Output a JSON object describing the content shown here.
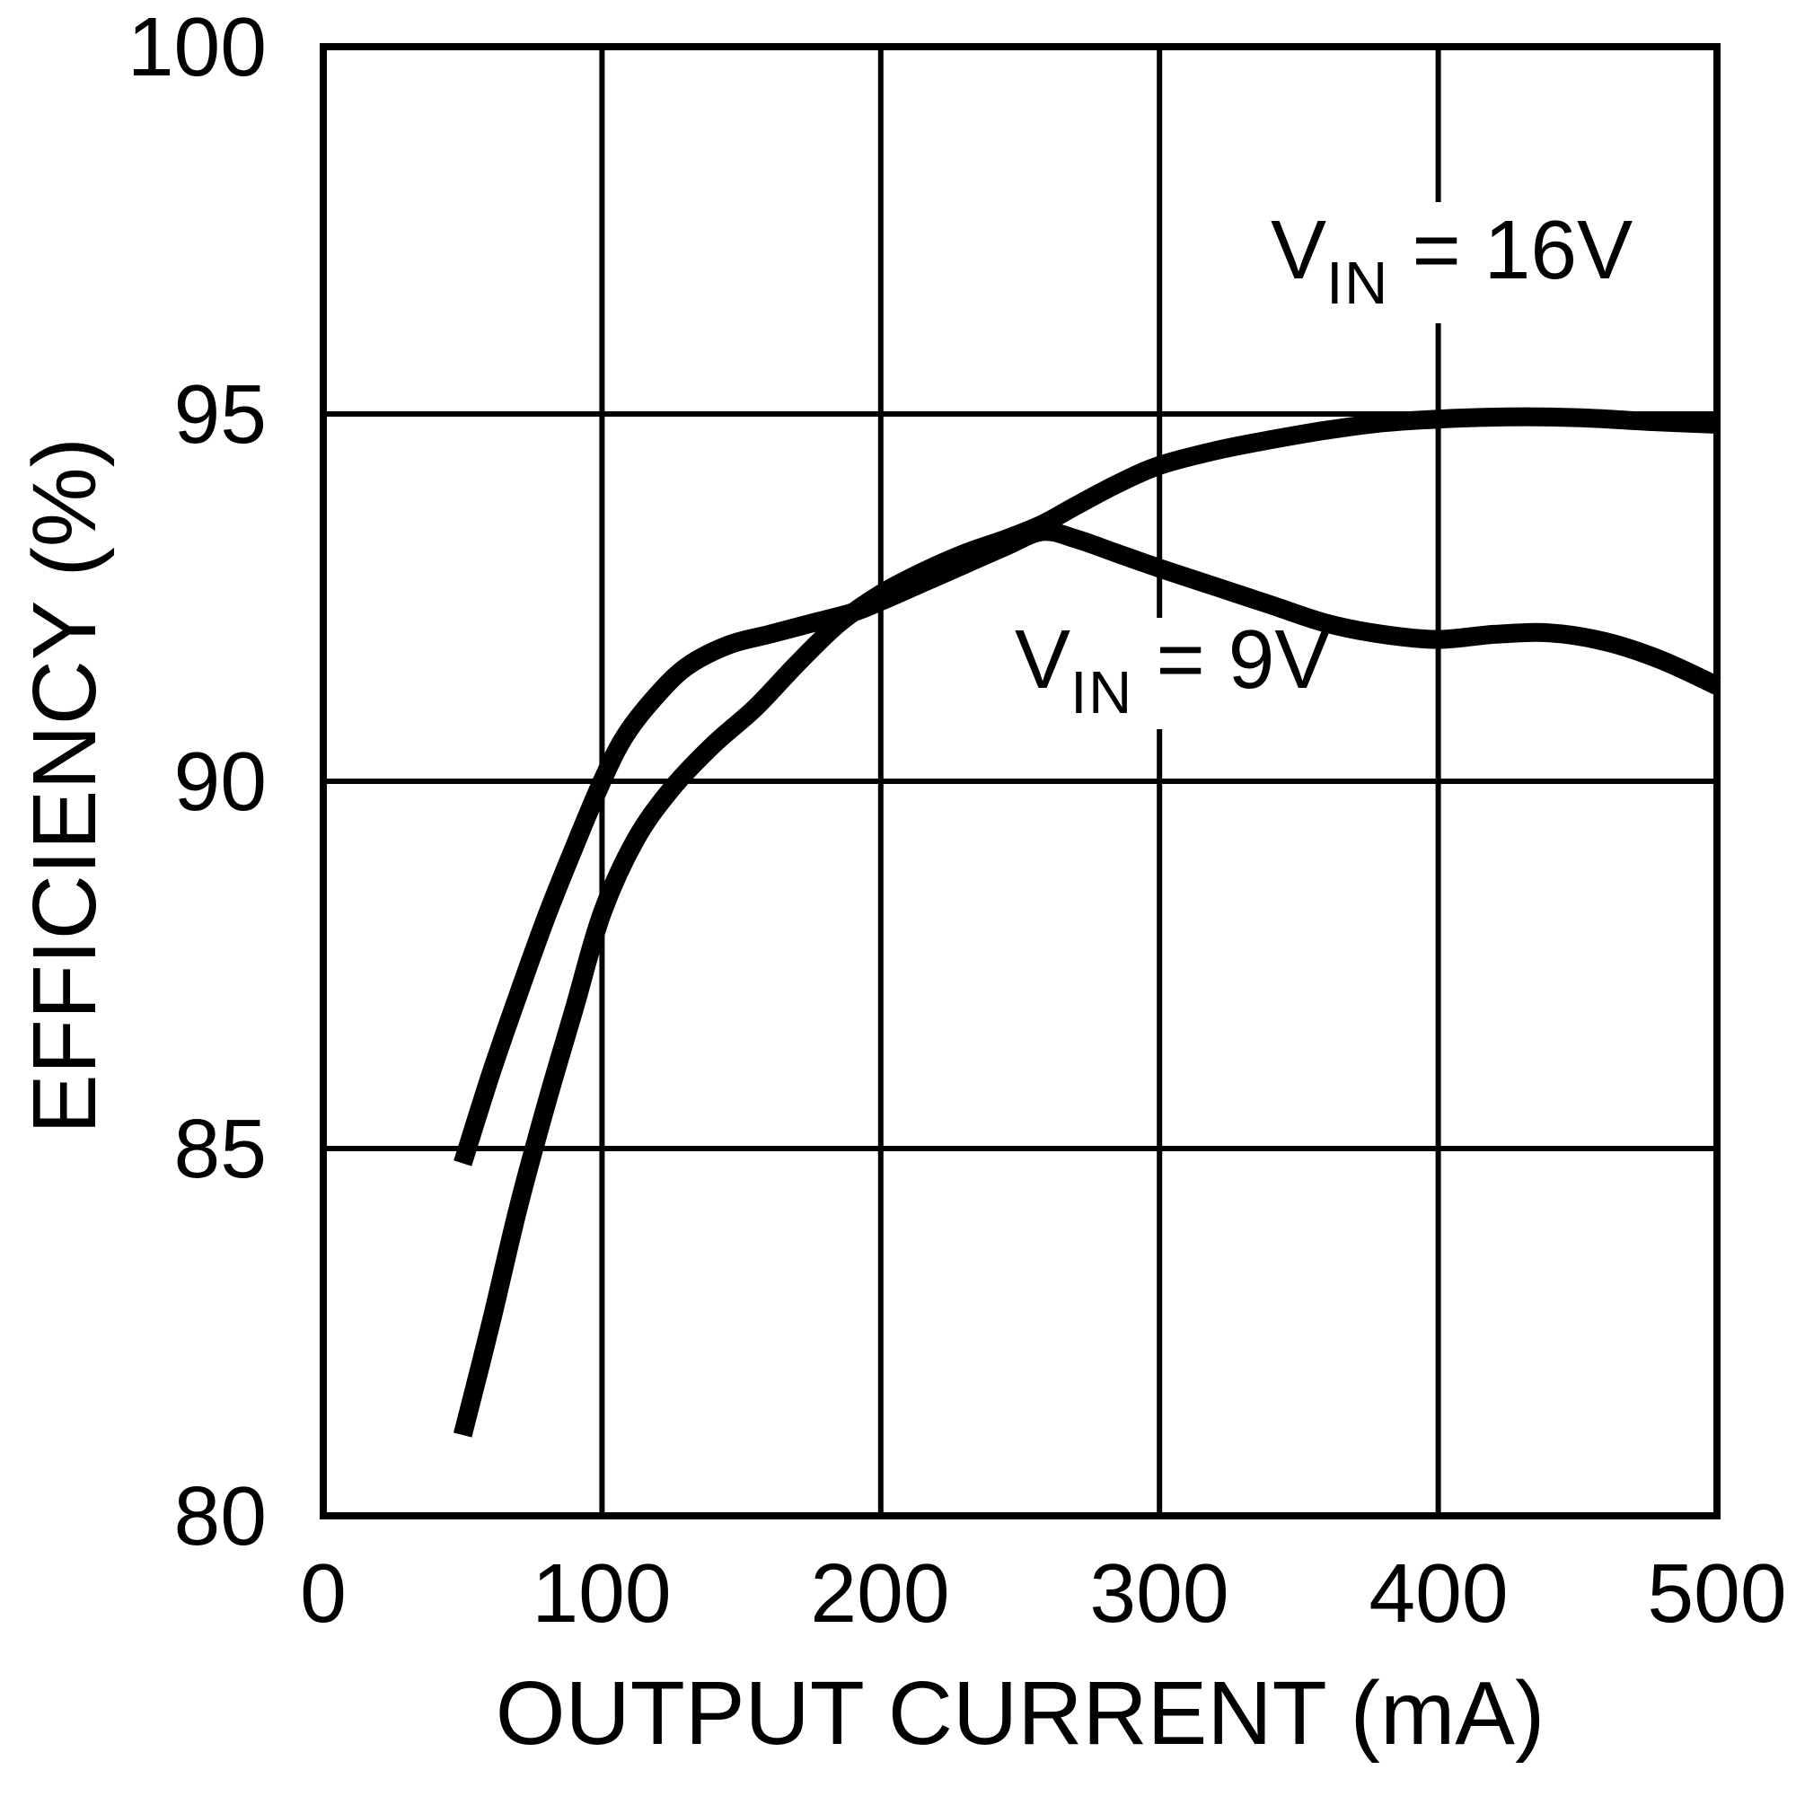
{
  "chart_data": {
    "type": "line",
    "title": "",
    "xlabel": "OUTPUT CURRENT (mA)",
    "ylabel": "EFFICIENCY (%)",
    "xlim": [
      0,
      500
    ],
    "ylim": [
      80,
      100
    ],
    "x_ticks": [
      0,
      100,
      200,
      300,
      400,
      500
    ],
    "x_tick_labels": [
      "0",
      "100",
      "200",
      "300",
      "400",
      "500"
    ],
    "y_ticks": [
      100,
      95,
      90,
      85,
      80
    ],
    "y_tick_labels": [
      "100",
      "95",
      "90",
      "85",
      "80"
    ],
    "grid": true,
    "legend_position": "none",
    "background": "#ffffff",
    "line_color": "#000000",
    "series": [
      {
        "id": "vin-16v",
        "name": "VIN = 16V",
        "label": {
          "v": "V",
          "sub": "IN",
          "rest": " = 16V"
        },
        "annotation_position_ma_pct": [
          377,
          97.1
        ],
        "points": [
          [
            50,
            81.1
          ],
          [
            60,
            82.6
          ],
          [
            70,
            84.2
          ],
          [
            80,
            85.6
          ],
          [
            90,
            86.9
          ],
          [
            100,
            88.2
          ],
          [
            112,
            89.2
          ],
          [
            125,
            89.9
          ],
          [
            140,
            90.5
          ],
          [
            155,
            91.0
          ],
          [
            170,
            91.6
          ],
          [
            185,
            92.15
          ],
          [
            200,
            92.55
          ],
          [
            215,
            92.85
          ],
          [
            230,
            93.1
          ],
          [
            245,
            93.3
          ],
          [
            258,
            93.5
          ],
          [
            270,
            93.75
          ],
          [
            285,
            94.05
          ],
          [
            300,
            94.3
          ],
          [
            320,
            94.5
          ],
          [
            340,
            94.65
          ],
          [
            360,
            94.78
          ],
          [
            380,
            94.88
          ],
          [
            400,
            94.93
          ],
          [
            425,
            94.96
          ],
          [
            450,
            94.95
          ],
          [
            475,
            94.9
          ],
          [
            500,
            94.86
          ]
        ]
      },
      {
        "id": "vin-9v",
        "name": "VIN = 9V",
        "label": {
          "v": "V",
          "sub": "IN",
          "rest": " = 9V"
        },
        "annotation_position_ma_pct": [
          299,
          91.4
        ],
        "points": [
          [
            50,
            84.8
          ],
          [
            60,
            86.0
          ],
          [
            70,
            87.1
          ],
          [
            80,
            88.15
          ],
          [
            90,
            89.1
          ],
          [
            100,
            90.0
          ],
          [
            108,
            90.6
          ],
          [
            118,
            91.1
          ],
          [
            130,
            91.55
          ],
          [
            145,
            91.85
          ],
          [
            160,
            92.0
          ],
          [
            175,
            92.15
          ],
          [
            190,
            92.3
          ],
          [
            200,
            92.45
          ],
          [
            215,
            92.7
          ],
          [
            230,
            92.95
          ],
          [
            245,
            93.2
          ],
          [
            258,
            93.4
          ],
          [
            270,
            93.3
          ],
          [
            285,
            93.1
          ],
          [
            300,
            92.9
          ],
          [
            320,
            92.65
          ],
          [
            340,
            92.4
          ],
          [
            360,
            92.15
          ],
          [
            380,
            92.0
          ],
          [
            400,
            91.93
          ],
          [
            420,
            92.0
          ],
          [
            440,
            92.02
          ],
          [
            460,
            91.9
          ],
          [
            480,
            91.65
          ],
          [
            500,
            91.3
          ]
        ]
      }
    ]
  }
}
